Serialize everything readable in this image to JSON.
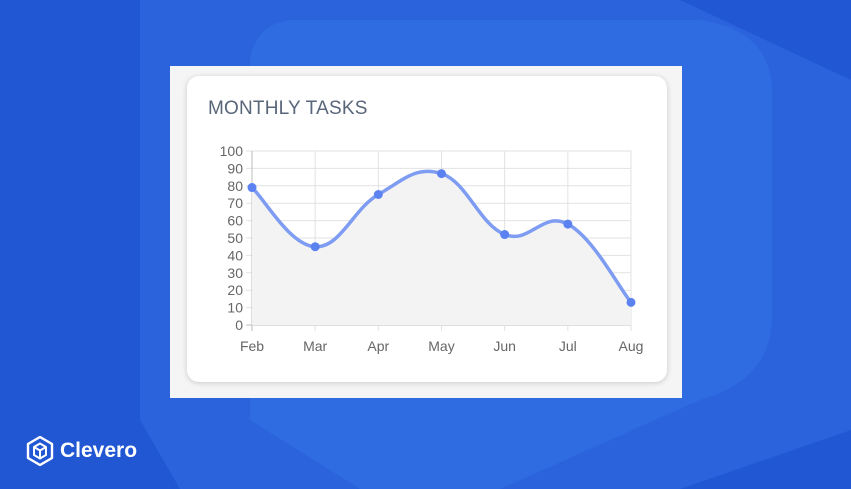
{
  "card": {
    "title": "MONTHLY TASKS"
  },
  "brand": {
    "name": "Clevero",
    "icon": "clevero-logo-icon"
  },
  "colors": {
    "background": "#2257d4",
    "hexagon": "#2d6ae0",
    "line": "#7d9cf2",
    "point": "#5b82f0",
    "area": "#f3f3f3"
  },
  "chart_data": {
    "type": "line",
    "categories": [
      "Feb",
      "Mar",
      "Apr",
      "May",
      "Jun",
      "Jul",
      "Aug"
    ],
    "series": [
      {
        "values": [
          79,
          45,
          75,
          87,
          52,
          58,
          13
        ]
      }
    ],
    "ylim": [
      0,
      100
    ],
    "yticks": [
      0,
      10,
      20,
      30,
      40,
      50,
      60,
      70,
      80,
      90,
      100
    ],
    "grid": true,
    "smooth": true,
    "area_fill": true
  }
}
